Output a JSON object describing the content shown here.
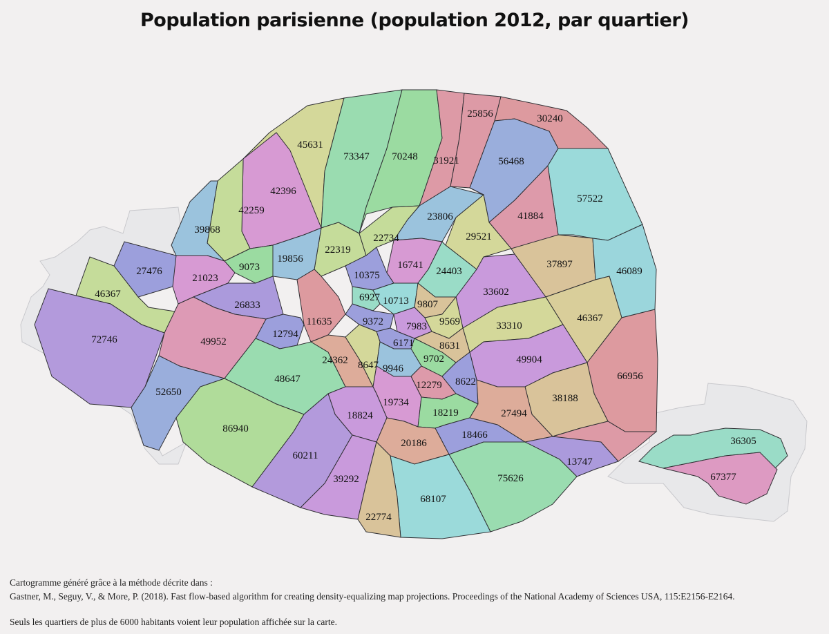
{
  "title": "Population parisienne (population 2012, par quartier)",
  "map_labels": [
    {
      "text": "45631",
      "color": "#d4d89a"
    },
    {
      "text": "73347",
      "color": "#9adcb0"
    },
    {
      "text": "70248",
      "color": "#9bdba1"
    },
    {
      "text": "31921",
      "color": "#dd9aa6"
    },
    {
      "text": "25856",
      "color": "#dd9aa6"
    },
    {
      "text": "30240",
      "color": "#dd9a9f"
    },
    {
      "text": "56468",
      "color": "#9aaedc"
    },
    {
      "text": "42396",
      "color": "#d79ad3"
    },
    {
      "text": "42259",
      "color": "#c5dc9a"
    },
    {
      "text": "39868",
      "color": "#9bc3dd"
    },
    {
      "text": "57522",
      "color": "#9bdada"
    },
    {
      "text": "41884",
      "color": "#dd9aaa"
    },
    {
      "text": "23806",
      "color": "#9bc3dd"
    },
    {
      "text": "29521",
      "color": "#d4d89a"
    },
    {
      "text": "22319",
      "color": "#c5dc9a"
    },
    {
      "text": "22734",
      "color": "#c5dc9a"
    },
    {
      "text": "27476",
      "color": "#9c9fdc"
    },
    {
      "text": "9073",
      "color": "#9bdba1"
    },
    {
      "text": "19856",
      "color": "#9bc3dd"
    },
    {
      "text": "16741",
      "color": "#d79ad3"
    },
    {
      "text": "24403",
      "color": "#9adcc7"
    },
    {
      "text": "37897",
      "color": "#d9c39a"
    },
    {
      "text": "46089",
      "color": "#9bd6dc"
    },
    {
      "text": "46367",
      "color": "#c5dc9a"
    },
    {
      "text": "21023",
      "color": "#d79ad3"
    },
    {
      "text": "10375",
      "color": "#9c9fdc"
    },
    {
      "text": "6927",
      "color": "#9adcc7"
    },
    {
      "text": "10713",
      "color": "#9bdada"
    },
    {
      "text": "9807",
      "color": "#d9c39a"
    },
    {
      "text": "33602",
      "color": "#c99adc"
    },
    {
      "text": "26833",
      "color": "#ab9adc"
    },
    {
      "text": "11635",
      "color": "#dd9a9f"
    },
    {
      "text": "9372",
      "color": "#9c9fdc"
    },
    {
      "text": "7983",
      "color": "#c99adc"
    },
    {
      "text": "9569",
      "color": "#d4d89a"
    },
    {
      "text": "33310",
      "color": "#d4d89a"
    },
    {
      "text": "46367",
      "color": "#d9ce9a"
    },
    {
      "text": "72746",
      "color": "#b39adc"
    },
    {
      "text": "12794",
      "color": "#9c9fdc"
    },
    {
      "text": "49952",
      "color": "#dd9ab5"
    },
    {
      "text": "6171",
      "color": "#9c9fdc"
    },
    {
      "text": "8631",
      "color": "#d9c39a"
    },
    {
      "text": "24362",
      "color": "#ddac9a"
    },
    {
      "text": "8647",
      "color": "#d4d89a"
    },
    {
      "text": "9702",
      "color": "#9bdba1"
    },
    {
      "text": "49904",
      "color": "#c99adc"
    },
    {
      "text": "66956",
      "color": "#dd9a9f"
    },
    {
      "text": "9946",
      "color": "#9bc3dd"
    },
    {
      "text": "48647",
      "color": "#9adcb0"
    },
    {
      "text": "12279",
      "color": "#dd9aaa"
    },
    {
      "text": "8622",
      "color": "#9c9fdc"
    },
    {
      "text": "52650",
      "color": "#9aaedc"
    },
    {
      "text": "19734",
      "color": "#d79ad3"
    },
    {
      "text": "38188",
      "color": "#d9c39a"
    },
    {
      "text": "18219",
      "color": "#9bdba1"
    },
    {
      "text": "27494",
      "color": "#ddac9a"
    },
    {
      "text": "18824",
      "color": "#c99adc"
    },
    {
      "text": "86940",
      "color": "#b0dc9a"
    },
    {
      "text": "18466",
      "color": "#9c9fdc"
    },
    {
      "text": "36305",
      "color": "#9adcc7"
    },
    {
      "text": "20186",
      "color": "#ddac9a"
    },
    {
      "text": "60211",
      "color": "#b39adc"
    },
    {
      "text": "13747",
      "color": "#ab9adc"
    },
    {
      "text": "75626",
      "color": "#9adcb0"
    },
    {
      "text": "67377",
      "color": "#dd9ac2"
    },
    {
      "text": "39292",
      "color": "#c99adc"
    },
    {
      "text": "68107",
      "color": "#9bdada"
    },
    {
      "text": "22774",
      "color": "#d9c39a"
    }
  ],
  "credits": {
    "line1": "Cartogramme généré grâce à la méthode décrite dans :",
    "line2": "Gastner, M., Seguy, V., & More, P. (2018). Fast flow-based algorithm for creating density-equalizing map projections. Proceedings of the National Academy of Sciences USA, 115:E2156-E2164.",
    "line3": "Seuls les quartiers de plus de 6000 habitants voient leur population affichée sur la carte."
  },
  "colors": {
    "background": "#f2f0f0",
    "outside_area": "#e9e8ea",
    "border": "#333333"
  }
}
